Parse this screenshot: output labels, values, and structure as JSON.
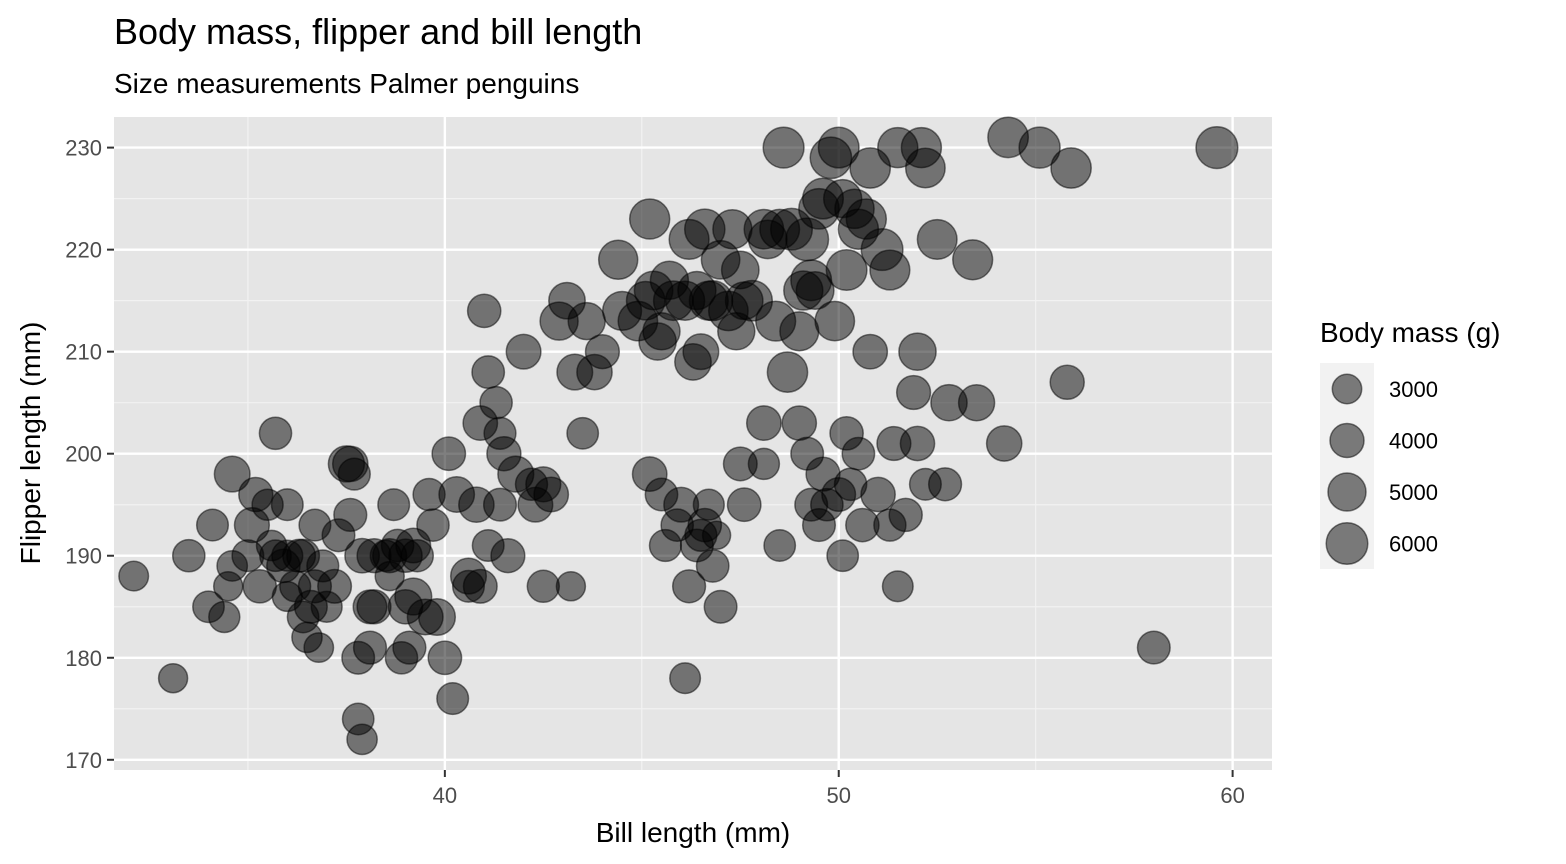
{
  "chart_data": {
    "type": "scatter",
    "title": "Body mass, flipper and bill length",
    "subtitle": "Size measurements Palmer penguins",
    "xlabel": "Bill length (mm)",
    "ylabel": "Flipper length (mm)",
    "xlim": [
      31.6,
      61.0
    ],
    "ylim": [
      169.0,
      233.0
    ],
    "x_ticks": [
      40,
      50,
      60
    ],
    "y_ticks": [
      170,
      180,
      190,
      200,
      210,
      220,
      230
    ],
    "grid": true,
    "size_legend": {
      "title": "Body mass (g)",
      "values": [
        3000,
        4000,
        5000,
        6000
      ],
      "labels": [
        "3000",
        "4000",
        "5000",
        "6000"
      ],
      "placement": "right"
    },
    "colors": {
      "panel": "#e5e5e5",
      "grid_major": "#ffffff",
      "point_fill": "#000000",
      "legend_key_bg": "#f2f2f2"
    },
    "points": [
      [
        32.1,
        188,
        3050
      ],
      [
        33.1,
        178,
        2900
      ],
      [
        33.5,
        190,
        3600
      ],
      [
        34.0,
        185,
        3400
      ],
      [
        34.1,
        193,
        3475
      ],
      [
        34.4,
        184,
        3325
      ],
      [
        34.6,
        198,
        4400
      ],
      [
        34.6,
        189,
        3200
      ],
      [
        34.5,
        187,
        2900
      ],
      [
        35.0,
        190,
        3450
      ],
      [
        35.1,
        193,
        4200
      ],
      [
        35.2,
        196,
        4000
      ],
      [
        35.3,
        187,
        3800
      ],
      [
        35.5,
        195,
        3350
      ],
      [
        35.6,
        191,
        3175
      ],
      [
        35.7,
        202,
        3600
      ],
      [
        35.7,
        190,
        3400
      ],
      [
        35.9,
        189,
        3800
      ],
      [
        36.0,
        195,
        3450
      ],
      [
        36.0,
        186,
        3100
      ],
      [
        36.2,
        187,
        3300
      ],
      [
        36.3,
        190,
        3700
      ],
      [
        36.4,
        184,
        3400
      ],
      [
        36.4,
        190,
        3700
      ],
      [
        36.5,
        182,
        3150
      ],
      [
        36.6,
        185,
        3700
      ],
      [
        36.7,
        193,
        3450
      ],
      [
        36.8,
        181,
        3000
      ],
      [
        36.9,
        189,
        3500
      ],
      [
        37.0,
        185,
        3300
      ],
      [
        37.2,
        187,
        3900
      ],
      [
        37.3,
        192,
        3700
      ],
      [
        37.5,
        199,
        4475
      ],
      [
        37.6,
        194,
        3750
      ],
      [
        37.7,
        198,
        3500
      ],
      [
        37.8,
        180,
        3700
      ],
      [
        37.8,
        174,
        3400
      ],
      [
        37.9,
        172,
        3150
      ],
      [
        38.1,
        181,
        3750
      ],
      [
        38.1,
        185,
        3900
      ],
      [
        38.2,
        185,
        3950
      ],
      [
        38.5,
        190,
        3325
      ],
      [
        38.6,
        188,
        2900
      ],
      [
        38.7,
        195,
        3450
      ],
      [
        38.8,
        191,
        3600
      ],
      [
        38.9,
        180,
        3600
      ],
      [
        39.0,
        190,
        3800
      ],
      [
        39.1,
        181,
        3750
      ],
      [
        39.2,
        186,
        4675
      ],
      [
        39.3,
        190,
        3550
      ],
      [
        39.5,
        184,
        4400
      ],
      [
        39.6,
        196,
        3550
      ],
      [
        39.7,
        193,
        3600
      ],
      [
        40.0,
        180,
        3850
      ],
      [
        40.1,
        200,
        3850
      ],
      [
        40.2,
        176,
        3450
      ],
      [
        40.6,
        188,
        4400
      ],
      [
        40.8,
        195,
        4300
      ],
      [
        40.9,
        203,
        4100
      ],
      [
        41.0,
        214,
        3800
      ],
      [
        41.1,
        208,
        3650
      ],
      [
        41.3,
        205,
        3600
      ],
      [
        41.4,
        202,
        3500
      ],
      [
        41.5,
        200,
        4000
      ],
      [
        41.6,
        190,
        3950
      ],
      [
        41.8,
        198,
        4450
      ],
      [
        42.0,
        210,
        4150
      ],
      [
        42.2,
        197,
        3550
      ],
      [
        42.3,
        195,
        4150
      ],
      [
        42.5,
        197,
        4200
      ],
      [
        42.7,
        196,
        4100
      ],
      [
        42.9,
        213,
        5000
      ],
      [
        43.1,
        215,
        4600
      ],
      [
        43.2,
        187,
        2900
      ],
      [
        43.3,
        208,
        4400
      ],
      [
        43.5,
        202,
        3400
      ],
      [
        43.6,
        213,
        4750
      ],
      [
        43.8,
        208,
        4300
      ],
      [
        44.0,
        210,
        3950
      ],
      [
        44.4,
        219,
        5250
      ],
      [
        44.5,
        214,
        5200
      ],
      [
        44.9,
        213,
        5400
      ],
      [
        45.1,
        215,
        5100
      ],
      [
        45.2,
        223,
        5550
      ],
      [
        45.3,
        216,
        5100
      ],
      [
        45.4,
        211,
        4800
      ],
      [
        45.5,
        212,
        4750
      ],
      [
        45.7,
        217,
        5000
      ],
      [
        45.8,
        215,
        5400
      ],
      [
        46.1,
        215,
        5300
      ],
      [
        46.2,
        221,
        5500
      ],
      [
        46.3,
        209,
        4600
      ],
      [
        46.4,
        216,
        5000
      ],
      [
        46.5,
        210,
        4400
      ],
      [
        46.6,
        222,
        5600
      ],
      [
        46.7,
        215,
        5200
      ],
      [
        46.8,
        215,
        5500
      ],
      [
        47.0,
        219,
        5100
      ],
      [
        47.2,
        214,
        5400
      ],
      [
        47.3,
        222,
        5250
      ],
      [
        47.4,
        212,
        4725
      ],
      [
        47.5,
        218,
        4875
      ],
      [
        47.6,
        215,
        4850
      ],
      [
        47.8,
        215,
        5650
      ],
      [
        48.1,
        222,
        5400
      ],
      [
        48.2,
        221,
        5100
      ],
      [
        48.4,
        213,
        5500
      ],
      [
        48.5,
        222,
        5450
      ],
      [
        48.6,
        230,
        5800
      ],
      [
        48.7,
        208,
        5600
      ],
      [
        48.8,
        222,
        6000
      ],
      [
        49.0,
        212,
        5200
      ],
      [
        49.1,
        216,
        5250
      ],
      [
        49.2,
        221,
        6300
      ],
      [
        49.3,
        217,
        5700
      ],
      [
        49.4,
        216,
        4925
      ],
      [
        49.5,
        224,
        5650
      ],
      [
        49.6,
        225,
        5700
      ],
      [
        49.8,
        229,
        5950
      ],
      [
        49.9,
        213,
        5400
      ],
      [
        50.0,
        230,
        5700
      ],
      [
        50.1,
        225,
        5000
      ],
      [
        50.2,
        218,
        5700
      ],
      [
        50.4,
        224,
        5350
      ],
      [
        50.5,
        222,
        5550
      ],
      [
        50.7,
        223,
        5550
      ],
      [
        50.8,
        228,
        5600
      ],
      [
        51.1,
        220,
        6000
      ],
      [
        51.3,
        218,
        5500
      ],
      [
        51.5,
        230,
        5550
      ],
      [
        52.1,
        230,
        5550
      ],
      [
        52.2,
        228,
        5400
      ],
      [
        52.5,
        221,
        5450
      ],
      [
        53.4,
        219,
        5500
      ],
      [
        54.3,
        231,
        5650
      ],
      [
        55.1,
        230,
        5850
      ],
      [
        55.9,
        228,
        5600
      ],
      [
        59.6,
        230,
        6050
      ],
      [
        45.2,
        198,
        4100
      ],
      [
        45.5,
        196,
        3650
      ],
      [
        45.6,
        191,
        3500
      ],
      [
        45.9,
        193,
        3575
      ],
      [
        46.0,
        195,
        4150
      ],
      [
        46.1,
        178,
        3250
      ],
      [
        46.2,
        187,
        3725
      ],
      [
        46.4,
        191,
        3700
      ],
      [
        46.5,
        192,
        3500
      ],
      [
        46.6,
        193,
        3800
      ],
      [
        46.7,
        195,
        3300
      ],
      [
        46.8,
        189,
        3650
      ],
      [
        46.9,
        192,
        2700
      ],
      [
        47.0,
        185,
        3700
      ],
      [
        47.5,
        199,
        3900
      ],
      [
        47.6,
        195,
        3850
      ],
      [
        48.1,
        199,
        3325
      ],
      [
        48.5,
        191,
        3400
      ],
      [
        48.1,
        203,
        4100
      ],
      [
        49.0,
        203,
        4050
      ],
      [
        49.2,
        200,
        3700
      ],
      [
        49.3,
        195,
        3700
      ],
      [
        49.5,
        193,
        3700
      ],
      [
        49.6,
        198,
        3950
      ],
      [
        49.7,
        195,
        3600
      ],
      [
        50.0,
        196,
        3900
      ],
      [
        50.1,
        190,
        3400
      ],
      [
        50.2,
        202,
        3800
      ],
      [
        50.3,
        197,
        3600
      ],
      [
        50.5,
        200,
        3650
      ],
      [
        50.6,
        193,
        3800
      ],
      [
        50.8,
        210,
        4100
      ],
      [
        51.0,
        196,
        4050
      ],
      [
        51.3,
        193,
        3550
      ],
      [
        51.4,
        201,
        3950
      ],
      [
        51.5,
        187,
        3250
      ],
      [
        51.7,
        194,
        3775
      ],
      [
        52.0,
        210,
        4800
      ],
      [
        52.0,
        201,
        4050
      ],
      [
        52.2,
        197,
        3450
      ],
      [
        52.7,
        197,
        3725
      ],
      [
        52.8,
        205,
        4550
      ],
      [
        53.5,
        205,
        4500
      ],
      [
        54.2,
        201,
        4300
      ],
      [
        55.8,
        207,
        4000
      ],
      [
        58.0,
        181,
        3700
      ],
      [
        51.9,
        206,
        3950
      ],
      [
        36.0,
        190,
        3300
      ],
      [
        38.2,
        190,
        3950
      ],
      [
        39.2,
        191,
        4150
      ],
      [
        40.3,
        196,
        4350
      ],
      [
        37.6,
        199,
        4300
      ],
      [
        39.8,
        184,
        4650
      ],
      [
        40.6,
        187,
        3475
      ],
      [
        41.1,
        191,
        3450
      ],
      [
        39.0,
        185,
        4075
      ],
      [
        38.6,
        190,
        3950
      ],
      [
        42.5,
        187,
        3550
      ],
      [
        37.9,
        190,
        4100
      ],
      [
        36.7,
        187,
        3725
      ],
      [
        41.4,
        195,
        3700
      ],
      [
        40.9,
        187,
        3900
      ]
    ]
  }
}
